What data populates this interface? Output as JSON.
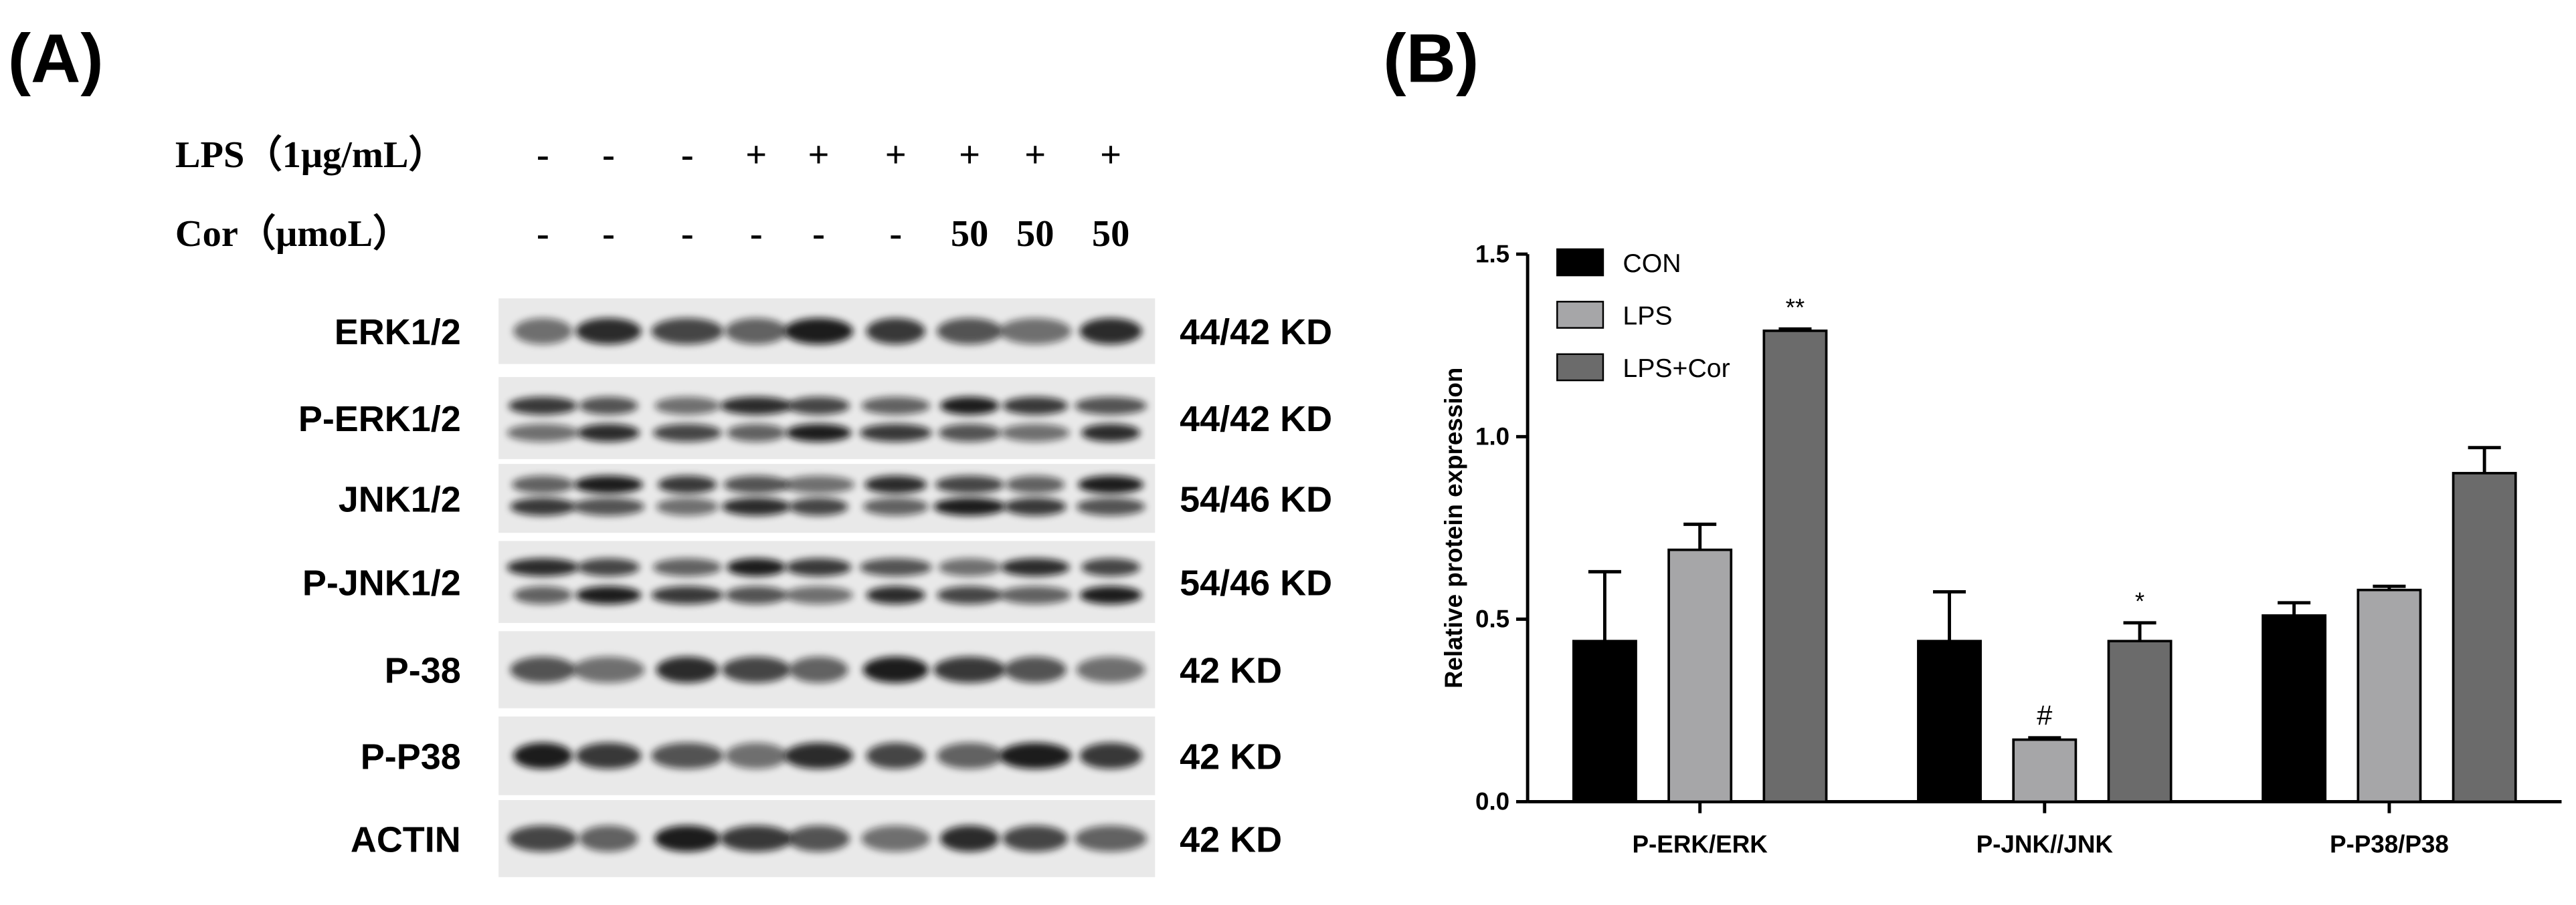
{
  "panel_a": {
    "panel_label": "(A)",
    "treatments": [
      {
        "label": "LPS（1μg/mL）",
        "values": [
          "-",
          "-",
          "-",
          "+",
          "+",
          "+",
          "+",
          "+",
          "+"
        ]
      },
      {
        "label": "Cor（μmoL）",
        "values": [
          "-",
          "-",
          "-",
          "-",
          "-",
          "-",
          "50",
          "50",
          "50"
        ]
      }
    ],
    "proteins": [
      {
        "name": "ERK1/2",
        "size": "44/42 KD"
      },
      {
        "name": "P-ERK1/2",
        "size": "44/42 KD"
      },
      {
        "name": "JNK1/2",
        "size": "54/46 KD"
      },
      {
        "name": "P-JNK1/2",
        "size": "54/46 KD"
      },
      {
        "name": "P-38",
        "size": "42 KD"
      },
      {
        "name": "P-P38",
        "size": "42 KD"
      },
      {
        "name": "ACTIN",
        "size": "42 KD"
      }
    ]
  },
  "chart_data": {
    "type": "bar",
    "panel_label": "(B)",
    "y_label": "Relative protein expression",
    "categories": [
      "P-ERK/ERK",
      "P-JNK//JNK",
      "P-P38/P38"
    ],
    "series": [
      {
        "name": "CON",
        "color": "#000000",
        "values": [
          0.44,
          0.44,
          0.51
        ],
        "errors": [
          0.19,
          0.135,
          0.035
        ],
        "labels": [
          null,
          null,
          null
        ]
      },
      {
        "name": "LPS",
        "color": "#a6a6a8",
        "values": [
          0.69,
          0.17,
          0.58
        ],
        "errors": [
          0.07,
          0.005,
          0.01
        ],
        "labels": [
          null,
          "#",
          null
        ]
      },
      {
        "name": "LPS+Cor",
        "color": "#6b6b6b",
        "values": [
          1.29,
          0.44,
          0.9
        ],
        "errors": [
          0.005,
          0.05,
          0.07
        ],
        "labels": [
          "**",
          "*",
          null
        ]
      }
    ],
    "ylim": [
      0,
      1.5
    ],
    "yticks": [
      {
        "value": 0,
        "label": "0.0"
      },
      {
        "value": 0.5,
        "label": "0.5"
      },
      {
        "value": 1,
        "label": "1.0"
      },
      {
        "value": 1.5,
        "label": "1.5"
      }
    ],
    "legend": "top-left"
  }
}
